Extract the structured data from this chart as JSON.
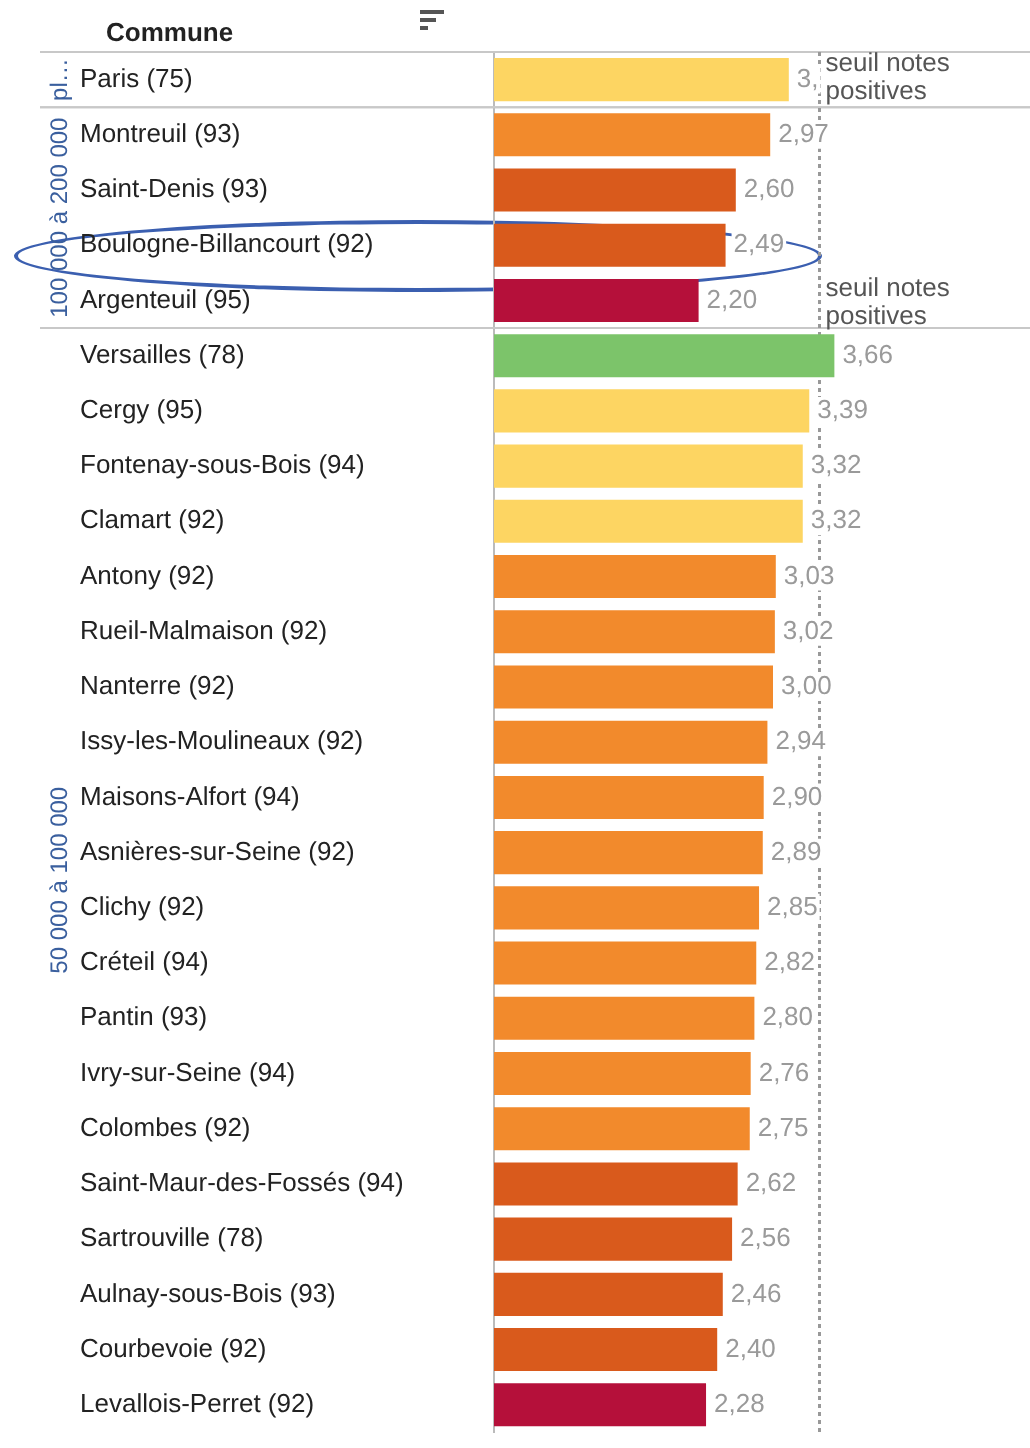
{
  "chart_data": {
    "type": "bar",
    "orientation": "horizontal",
    "ylabel": "Commune",
    "categories": [
      "Paris (75)",
      "Montreuil (93)",
      "Saint-Denis (93)",
      "Boulogne-Billancourt (92)",
      "Argenteuil (95)",
      "Versailles (78)",
      "Cergy (95)",
      "Fontenay-sous-Bois (94)",
      "Clamart (92)",
      "Antony (92)",
      "Rueil-Malmaison (92)",
      "Nanterre (92)",
      "Issy-les-Moulineaux (92)",
      "Maisons-Alfort (94)",
      "Asnières-sur-Seine (92)",
      "Clichy (92)",
      "Créteil (94)",
      "Pantin (93)",
      "Ivry-sur-Seine (94)",
      "Colombes (92)",
      "Saint-Maur-des-Fossés (94)",
      "Sartrouville (78)",
      "Aulnay-sous-Bois (93)",
      "Courbevoie (92)",
      "Levallois-Perret (92)"
    ],
    "values": [
      3.17,
      2.97,
      2.6,
      2.49,
      2.2,
      3.66,
      3.39,
      3.32,
      3.32,
      3.03,
      3.02,
      3.0,
      2.94,
      2.9,
      2.89,
      2.85,
      2.82,
      2.8,
      2.76,
      2.75,
      2.62,
      2.56,
      2.46,
      2.4,
      2.28
    ],
    "value_labels": [
      "3,",
      "2,97",
      "2,60",
      "2,49",
      "2,20",
      "3,66",
      "3,39",
      "3,32",
      "3,32",
      "3,03",
      "3,02",
      "3,00",
      "2,94",
      "2,90",
      "2,89",
      "2,85",
      "2,82",
      "2,80",
      "2,76",
      "2,75",
      "2,62",
      "2,56",
      "2,46",
      "2,40",
      "2,28"
    ],
    "colors": [
      "#fdd562",
      "#f28a2c",
      "#d95a1c",
      "#d95a1c",
      "#b5103a",
      "#7cc46a",
      "#fdd562",
      "#fdd562",
      "#fdd562",
      "#f28a2c",
      "#f28a2c",
      "#f28a2c",
      "#f28a2c",
      "#f28a2c",
      "#f28a2c",
      "#f28a2c",
      "#f28a2c",
      "#f28a2c",
      "#f28a2c",
      "#f28a2c",
      "#d95a1c",
      "#d95a1c",
      "#d95a1c",
      "#d95a1c",
      "#b5103a"
    ],
    "tick_labels": "y",
    "grid": false,
    "legend": false,
    "ref_lines": [
      {
        "axis": "x",
        "value": 3.5,
        "label": "seuil notes positives",
        "color": "#999999",
        "line_style": "dotted"
      }
    ],
    "annotations": [
      "pl…",
      "100 000 à 200 000",
      "50 000 à 100 000",
      "seuil notes positives"
    ]
  }
}
